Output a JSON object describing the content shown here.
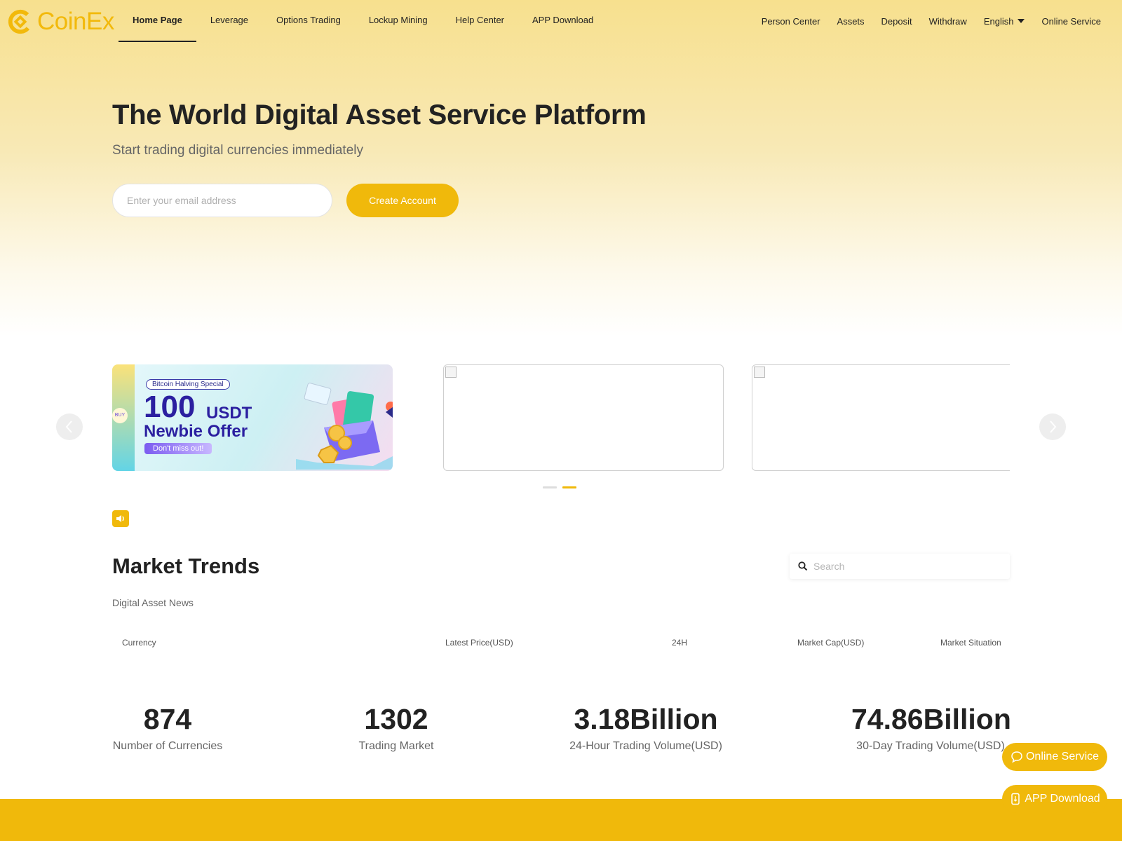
{
  "brand": {
    "name": "CoinEx",
    "color": "#f0b90b"
  },
  "nav": {
    "left": [
      "Home Page",
      "Leverage",
      "Options Trading",
      "Lockup Mining",
      "Help Center",
      "APP Download"
    ],
    "right": {
      "person_center": "Person Center",
      "assets": "Assets",
      "deposit": "Deposit",
      "withdraw": "Withdraw",
      "language": "English",
      "online_service": "Online Service"
    }
  },
  "hero": {
    "title": "The World Digital Asset Service Platform",
    "subtitle": "Start trading digital currencies immediately",
    "email_placeholder": "Enter your email address",
    "create_button": "Create Account"
  },
  "banner": {
    "tag": "Bitcoin Halving Special",
    "amount": "100",
    "unit": "USDT",
    "offer": "Newbie Offer",
    "cta": "Don't miss out!",
    "buy": "BUY"
  },
  "market": {
    "title": "Market Trends",
    "subtitle": "Digital Asset News",
    "search_placeholder": "Search",
    "columns": [
      "Currency",
      "Latest Price(USD)",
      "24H",
      "Market Cap(USD)",
      "Market Situation"
    ]
  },
  "stats": [
    {
      "value": "874",
      "label": "Number of Currencies"
    },
    {
      "value": "1302",
      "label": "Trading Market"
    },
    {
      "value": "3.18Billion",
      "label": "24-Hour Trading Volume(USD)"
    },
    {
      "value": "74.86Billion",
      "label": "30-Day Trading Volume(USD)"
    }
  ],
  "floating": {
    "online_service": "Online Service",
    "app_download": "APP Download"
  }
}
